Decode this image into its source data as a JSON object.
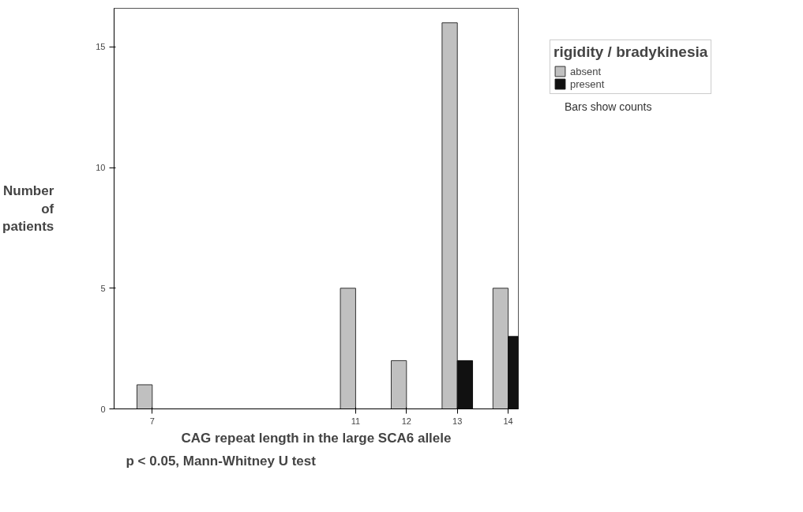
{
  "chart_data": {
    "type": "bar",
    "xlabel": "CAG repeat length in the large SCA6 allele",
    "ylabel": "Number of patients",
    "legend_title": "rigidity / bradykinesia",
    "x": [
      7,
      11,
      12,
      13,
      14
    ],
    "series": [
      {
        "name": "absent",
        "color": "#c0c0c0",
        "values": [
          1,
          5,
          2,
          16,
          5
        ]
      },
      {
        "name": "present",
        "color": "#111111",
        "values": [
          0,
          0,
          0,
          2,
          3
        ]
      }
    ],
    "xlim": [
      6.25,
      14.2
    ],
    "xticks": [
      7,
      11,
      12,
      13,
      14
    ],
    "ylim": [
      0,
      16.6
    ],
    "yticks": [
      0,
      5,
      10,
      15
    ],
    "grid": false,
    "legend": "top right",
    "annotations": [
      "p < 0.05, Mann-Whitney U test",
      "Bars show counts"
    ]
  }
}
